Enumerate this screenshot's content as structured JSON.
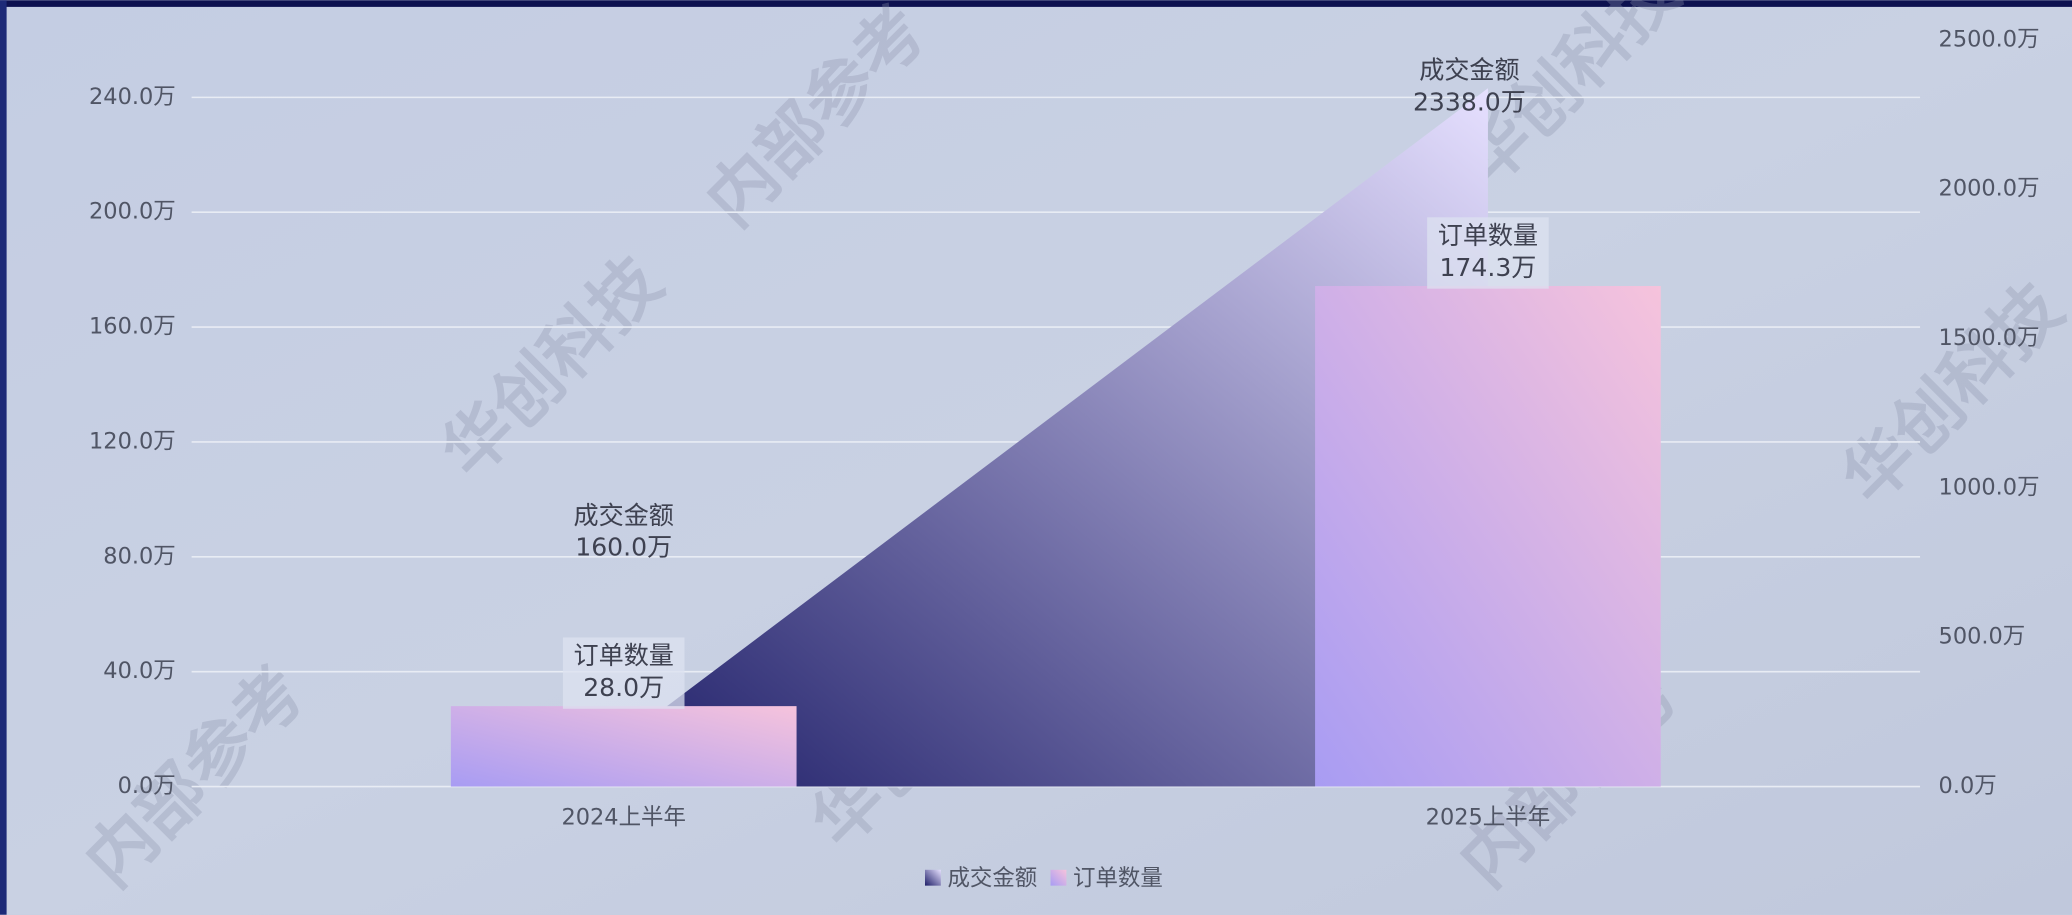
{
  "chart_data": {
    "type": "bar",
    "categories": [
      "2024上半年",
      "2025上半年"
    ],
    "series": [
      {
        "name": "成交金额",
        "type": "area",
        "axis": "y2",
        "color": [
          "#1e1e68",
          "#e6e0ff"
        ],
        "values": [
          160,
          2338
        ],
        "value_labels": [
          "160.0万",
          "2338.0万"
        ]
      },
      {
        "name": "订单数量",
        "type": "bar",
        "color": [
          "#a89cf3",
          "#f6c3dc"
        ],
        "values": [
          28,
          174.3
        ],
        "value_labels": [
          "28.0万",
          "174.3万"
        ]
      }
    ],
    "ylim": [
      0,
      260
    ],
    "yticks": [
      {
        "value": 0,
        "label": "0.0万"
      },
      {
        "value": 40,
        "label": "40.0万"
      },
      {
        "value": 80,
        "label": "80.0万"
      },
      {
        "value": 120,
        "label": "120.0万"
      },
      {
        "value": 160,
        "label": "160.0万"
      },
      {
        "value": 200,
        "label": "200.0万"
      },
      {
        "value": 240,
        "label": "240.0万"
      }
    ],
    "y2lim": [
      0,
      2500
    ],
    "y2ticks": [
      {
        "value": 0,
        "label": "0.0万"
      },
      {
        "value": 500,
        "label": "500.0万"
      },
      {
        "value": 1000,
        "label": "1000.0万"
      },
      {
        "value": 1500,
        "label": "1500.0万"
      },
      {
        "value": 2000,
        "label": "2000.0万"
      },
      {
        "value": 2500,
        "label": "2500.0万"
      }
    ],
    "grid": true,
    "legend": "bottom"
  },
  "watermark": [
    "华创科技",
    "内部参考"
  ]
}
